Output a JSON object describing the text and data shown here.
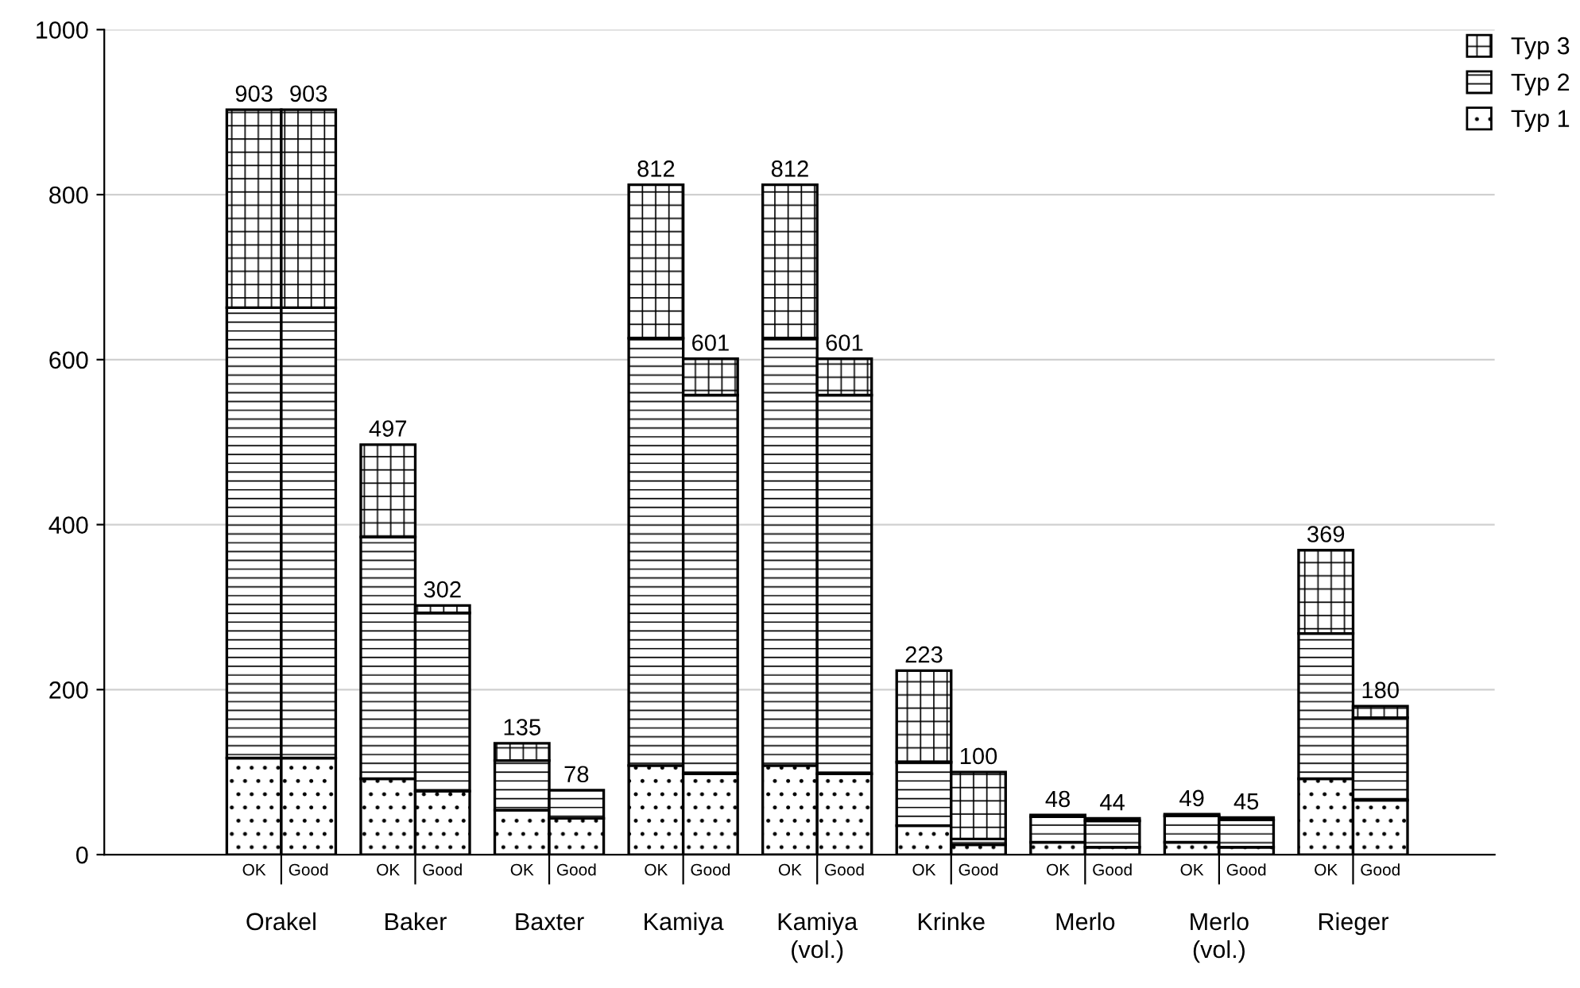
{
  "chart_data": {
    "type": "bar",
    "stacked": true,
    "categories": [
      "OK",
      "Good",
      "OK",
      "Good",
      "OK",
      "Good",
      "OK",
      "Good",
      "OK",
      "Good",
      "OK",
      "Good",
      "OK",
      "Good",
      "OK",
      "Good",
      "OK",
      "Good"
    ],
    "series": [
      {
        "name": "Typ 1",
        "color": "#000000",
        "values": [
          117,
          117,
          92,
          77,
          54,
          44,
          108,
          98,
          108,
          98,
          35,
          12,
          15,
          9,
          15,
          9,
          92,
          66
        ]
      },
      {
        "name": "Typ 2",
        "color": "#000000",
        "values": [
          546,
          546,
          293,
          216,
          60,
          34,
          518,
          459,
          518,
          459,
          77,
          7,
          31,
          32,
          32,
          33,
          176,
          100
        ]
      },
      {
        "name": "Typ 3",
        "color": "#000000",
        "values": [
          240,
          240,
          112,
          9,
          21,
          null,
          186,
          44,
          186,
          44,
          111,
          81,
          2,
          3,
          2,
          3,
          101,
          14
        ]
      }
    ],
    "totals": [
      "903",
      "903",
      "497",
      "302",
      "135",
      "78",
      "812",
      "601",
      "812",
      "601",
      "223",
      "100",
      "48",
      "44",
      "49",
      "45",
      "369",
      "180"
    ],
    "annotations": [
      "Orakel",
      "Baker",
      "Baxter",
      "Kamiya",
      "Kamiya\n(vol.)",
      "Krinke",
      "Merlo",
      "Merlo\n(vol.)",
      "Rieger"
    ],
    "ylim": [
      0,
      1000
    ],
    "yticks": [
      0,
      200,
      400,
      600,
      800,
      1000
    ],
    "grid": "y",
    "legend": "top right"
  }
}
